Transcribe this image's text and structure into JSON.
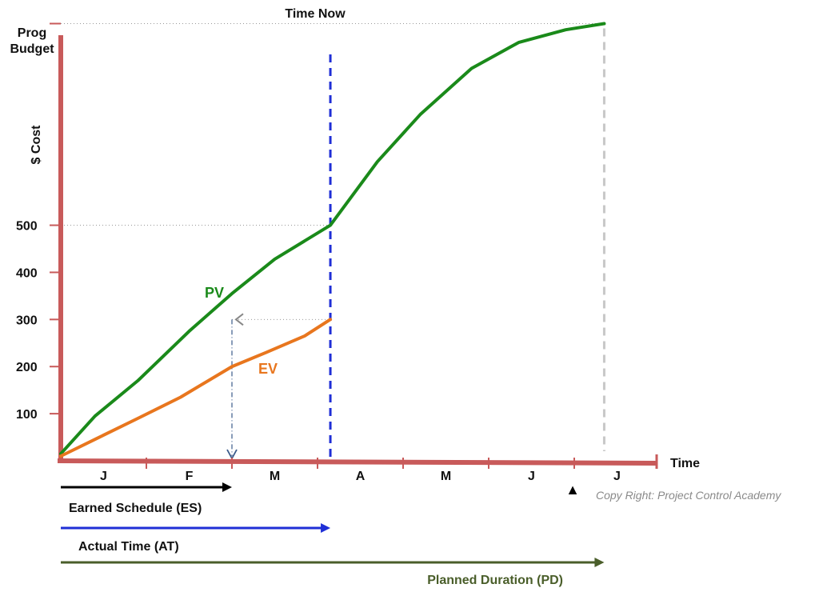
{
  "colors": {
    "axis": "#c85a5a",
    "pv": "#1a8a1a",
    "ev": "#e8761e",
    "time_now": "#1f2fd6",
    "planned_end": "#c8c8c8",
    "es_arrow": "#000000",
    "at_arrow": "#1f2fd6",
    "pd_arrow": "#4a5e2a",
    "pd_label": "#4a5e2a",
    "guide": "#999999",
    "es_drop": "#3a5a8a"
  },
  "chart_data": {
    "type": "line",
    "title": "Time Now",
    "ylabel": "$ Cost",
    "ylabel_top": [
      "Prog",
      "Budget"
    ],
    "xlabel": "Time",
    "categories": [
      "J",
      "F",
      "M",
      "A",
      "M",
      "J",
      "J"
    ],
    "x_range": [
      0,
      7.2
    ],
    "ylim": [
      0,
      900
    ],
    "y_ticks": [
      100,
      200,
      300,
      400,
      500
    ],
    "series": [
      {
        "name": "PV",
        "color_key": "pv",
        "x": [
          0,
          0.4,
          0.9,
          1.5,
          2.0,
          2.5,
          3.15,
          3.7,
          4.2,
          4.8,
          5.35,
          5.9,
          6.35
        ],
        "y": [
          15,
          95,
          170,
          275,
          355,
          428,
          500,
          635,
          735,
          833,
          888,
          915,
          928
        ]
      },
      {
        "name": "EV",
        "color_key": "ev",
        "x": [
          0,
          0.45,
          0.9,
          1.4,
          2.0,
          2.4,
          2.85,
          3.15
        ],
        "y": [
          10,
          50,
          90,
          135,
          200,
          230,
          265,
          300
        ]
      }
    ],
    "annotations": {
      "prog_budget_value": 928,
      "time_now_x": 3.15,
      "planned_end_x": 6.35,
      "earned_schedule_x": 2.0,
      "ev_at_time_now": 300,
      "planned_end_marker": "▲"
    },
    "arrows": [
      {
        "label": "Earned Schedule (ES)",
        "end_x": 2.0,
        "color_key": "es_arrow"
      },
      {
        "label": "Actual Time (AT)",
        "end_x": 3.15,
        "color_key": "at_arrow"
      },
      {
        "label": "Planned Duration (PD)",
        "end_x": 6.35,
        "color_key": "pd_arrow"
      }
    ],
    "copyright": "Copy Right: Project Control Academy"
  }
}
